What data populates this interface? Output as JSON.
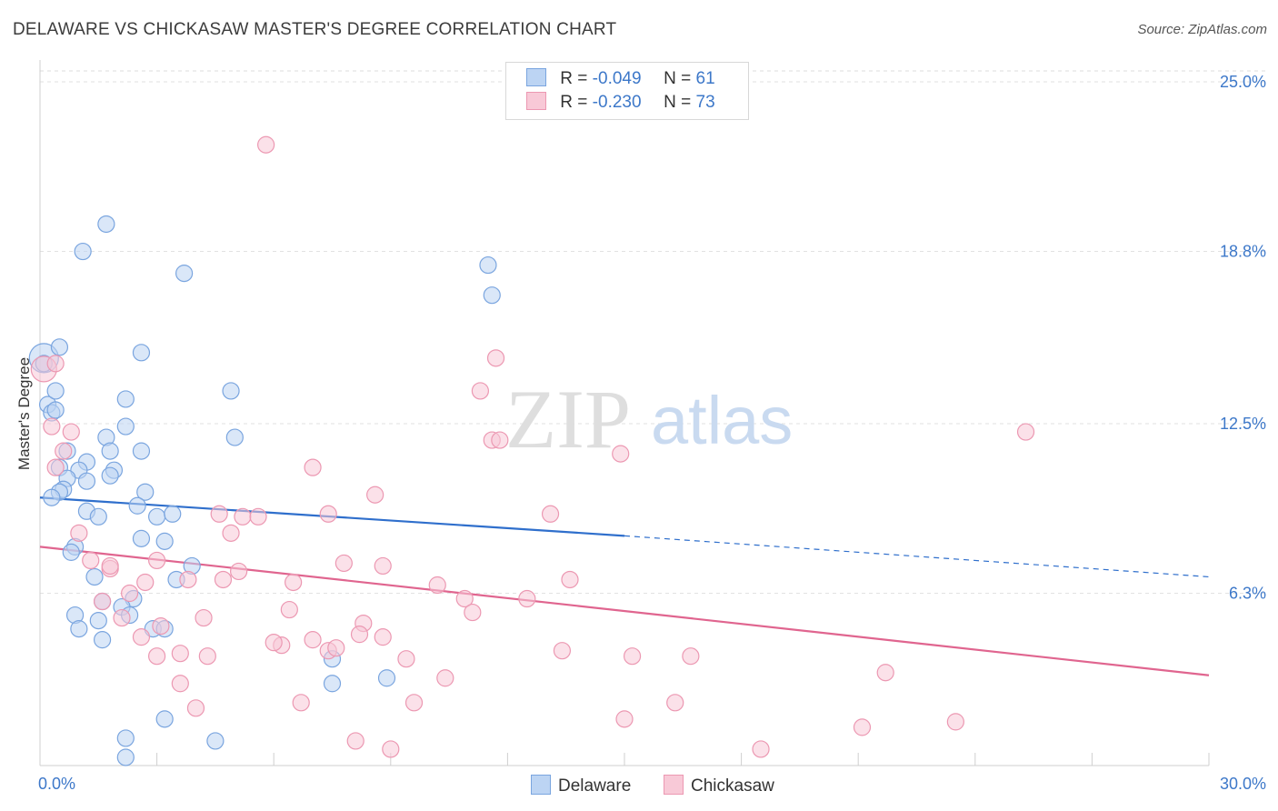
{
  "title": "DELAWARE VS CHICKASAW MASTER'S DEGREE CORRELATION CHART",
  "source": "Source: ZipAtlas.com",
  "legend": {
    "series": [
      {
        "name": "Delaware",
        "r_label": "R =",
        "r_value": "-0.049",
        "n_label": "N =",
        "n_value": "61"
      },
      {
        "name": "Chickasaw",
        "r_label": "R =",
        "r_value": "-0.230",
        "n_label": "N =",
        "n_value": "73"
      }
    ]
  },
  "colors": {
    "delaware_fill": "#bcd4f3",
    "delaware_stroke": "#7aa5df",
    "delaware_line": "#2f6fcc",
    "chickasaw_fill": "#f8c9d7",
    "chickasaw_stroke": "#ec98b2",
    "chickasaw_line": "#e0658f",
    "axis_label": "#3d78c9"
  },
  "watermark": {
    "zip": "ZIP",
    "atlas": "atlas"
  },
  "chart_data": {
    "type": "scatter",
    "title": "DELAWARE VS CHICKASAW MASTER'S DEGREE CORRELATION CHART",
    "xlabel": "",
    "ylabel": "Master's Degree",
    "xlim": [
      0,
      30
    ],
    "ylim": [
      0,
      25.8
    ],
    "x_tick_labels": [
      "0.0%",
      "30.0%"
    ],
    "y_ticks": [
      6.3,
      12.5,
      18.8,
      25.0
    ],
    "y_tick_labels": [
      "6.3%",
      "12.5%",
      "18.8%",
      "25.0%"
    ],
    "series": [
      {
        "name": "Delaware",
        "trend": {
          "x": [
            0,
            15
          ],
          "y": [
            9.8,
            8.4
          ],
          "dashed_to_x": 30,
          "dashed_to_y": 6.9
        },
        "points": [
          [
            0.1,
            14.9,
            16
          ],
          [
            0.1,
            14.7,
            9
          ],
          [
            0.2,
            13.2,
            9
          ],
          [
            0.3,
            12.9,
            9
          ],
          [
            0.4,
            13.0,
            9
          ],
          [
            0.5,
            15.3,
            9
          ],
          [
            0.4,
            13.7,
            9
          ],
          [
            1.1,
            18.8,
            9
          ],
          [
            1.7,
            19.8,
            9
          ],
          [
            3.7,
            18.0,
            9
          ],
          [
            2.6,
            15.1,
            9
          ],
          [
            2.2,
            13.4,
            9
          ],
          [
            4.9,
            13.7,
            9
          ],
          [
            2.2,
            12.4,
            9
          ],
          [
            1.7,
            12.0,
            9
          ],
          [
            5.0,
            12.0,
            9
          ],
          [
            2.6,
            11.5,
            9
          ],
          [
            1.8,
            11.5,
            9
          ],
          [
            0.7,
            11.5,
            9
          ],
          [
            1.2,
            11.1,
            9
          ],
          [
            0.5,
            10.9,
            9
          ],
          [
            1.0,
            10.8,
            9
          ],
          [
            1.9,
            10.8,
            9
          ],
          [
            1.8,
            10.6,
            9
          ],
          [
            0.7,
            10.5,
            9
          ],
          [
            1.2,
            10.4,
            9
          ],
          [
            0.6,
            10.1,
            9
          ],
          [
            0.5,
            10.0,
            9
          ],
          [
            2.7,
            10.0,
            9
          ],
          [
            0.3,
            9.8,
            9
          ],
          [
            2.5,
            9.5,
            9
          ],
          [
            1.2,
            9.3,
            9
          ],
          [
            1.5,
            9.1,
            9
          ],
          [
            3.0,
            9.1,
            9
          ],
          [
            3.4,
            9.2,
            9
          ],
          [
            2.6,
            8.3,
            9
          ],
          [
            3.2,
            8.2,
            9
          ],
          [
            0.9,
            8.0,
            9
          ],
          [
            0.8,
            7.8,
            9
          ],
          [
            3.9,
            7.3,
            9
          ],
          [
            1.4,
            6.9,
            9
          ],
          [
            3.5,
            6.8,
            9
          ],
          [
            1.6,
            6.0,
            9
          ],
          [
            2.4,
            6.1,
            9
          ],
          [
            2.1,
            5.8,
            9
          ],
          [
            2.3,
            5.5,
            9
          ],
          [
            0.9,
            5.5,
            9
          ],
          [
            1.5,
            5.3,
            9
          ],
          [
            1.0,
            5.0,
            9
          ],
          [
            2.9,
            5.0,
            9
          ],
          [
            3.2,
            5.0,
            9
          ],
          [
            1.6,
            4.6,
            9
          ],
          [
            7.5,
            3.9,
            9
          ],
          [
            8.9,
            3.2,
            9
          ],
          [
            7.5,
            3.0,
            9
          ],
          [
            3.2,
            1.7,
            9
          ],
          [
            2.2,
            1.0,
            9
          ],
          [
            4.5,
            0.9,
            9
          ],
          [
            2.2,
            0.3,
            9
          ],
          [
            11.5,
            18.3,
            9
          ],
          [
            11.6,
            17.2,
            9
          ]
        ]
      },
      {
        "name": "Chickasaw",
        "trend": {
          "x": [
            0,
            30
          ],
          "y": [
            8.0,
            3.3
          ]
        },
        "points": [
          [
            0.1,
            14.5,
            14
          ],
          [
            5.8,
            22.7,
            9
          ],
          [
            11.7,
            14.9,
            9
          ],
          [
            11.3,
            13.7,
            9
          ],
          [
            0.3,
            12.4,
            9
          ],
          [
            0.8,
            12.2,
            9
          ],
          [
            11.6,
            11.9,
            9
          ],
          [
            11.8,
            11.9,
            9
          ],
          [
            0.6,
            11.5,
            9
          ],
          [
            14.9,
            11.4,
            9
          ],
          [
            25.3,
            12.2,
            9
          ],
          [
            0.4,
            10.9,
            9
          ],
          [
            7.0,
            10.9,
            9
          ],
          [
            8.6,
            9.9,
            9
          ],
          [
            4.6,
            9.2,
            9
          ],
          [
            5.2,
            9.1,
            9
          ],
          [
            5.6,
            9.1,
            9
          ],
          [
            7.4,
            9.2,
            9
          ],
          [
            13.1,
            9.2,
            9
          ],
          [
            1.0,
            8.5,
            9
          ],
          [
            4.9,
            8.5,
            9
          ],
          [
            1.3,
            7.5,
            9
          ],
          [
            1.8,
            7.2,
            9
          ],
          [
            1.8,
            7.3,
            9
          ],
          [
            3.0,
            7.5,
            9
          ],
          [
            7.8,
            7.4,
            9
          ],
          [
            8.8,
            7.3,
            9
          ],
          [
            5.1,
            7.1,
            9
          ],
          [
            2.7,
            6.7,
            9
          ],
          [
            3.8,
            6.8,
            9
          ],
          [
            4.7,
            6.8,
            9
          ],
          [
            6.5,
            6.7,
            9
          ],
          [
            10.2,
            6.6,
            9
          ],
          [
            13.6,
            6.8,
            9
          ],
          [
            2.3,
            6.3,
            9
          ],
          [
            1.6,
            6.0,
            9
          ],
          [
            10.9,
            6.1,
            9
          ],
          [
            12.5,
            6.1,
            9
          ],
          [
            6.4,
            5.7,
            9
          ],
          [
            11.1,
            5.6,
            9
          ],
          [
            2.1,
            5.4,
            9
          ],
          [
            3.1,
            5.1,
            9
          ],
          [
            4.2,
            5.4,
            9
          ],
          [
            8.3,
            5.2,
            9
          ],
          [
            2.6,
            4.7,
            9
          ],
          [
            6.2,
            4.4,
            9
          ],
          [
            6.0,
            4.5,
            9
          ],
          [
            7.0,
            4.6,
            9
          ],
          [
            7.4,
            4.2,
            9
          ],
          [
            7.6,
            4.3,
            9
          ],
          [
            8.2,
            4.8,
            9
          ],
          [
            8.8,
            4.7,
            9
          ],
          [
            3.0,
            4.0,
            9
          ],
          [
            3.6,
            4.1,
            9
          ],
          [
            4.3,
            4.0,
            9
          ],
          [
            9.4,
            3.9,
            9
          ],
          [
            13.4,
            4.2,
            9
          ],
          [
            15.2,
            4.0,
            9
          ],
          [
            16.7,
            4.0,
            9
          ],
          [
            3.6,
            3.0,
            9
          ],
          [
            10.4,
            3.2,
            9
          ],
          [
            21.7,
            3.4,
            9
          ],
          [
            6.7,
            2.3,
            9
          ],
          [
            9.6,
            2.3,
            9
          ],
          [
            16.3,
            2.3,
            9
          ],
          [
            4.0,
            2.1,
            9
          ],
          [
            15.0,
            1.7,
            9
          ],
          [
            21.1,
            1.4,
            9
          ],
          [
            23.5,
            1.6,
            9
          ],
          [
            8.1,
            0.9,
            9
          ],
          [
            9.0,
            0.6,
            9
          ],
          [
            18.5,
            0.6,
            9
          ],
          [
            0.4,
            14.7,
            9
          ]
        ]
      }
    ]
  },
  "bottom_legend": {
    "delaware": "Delaware",
    "chickasaw": "Chickasaw"
  }
}
